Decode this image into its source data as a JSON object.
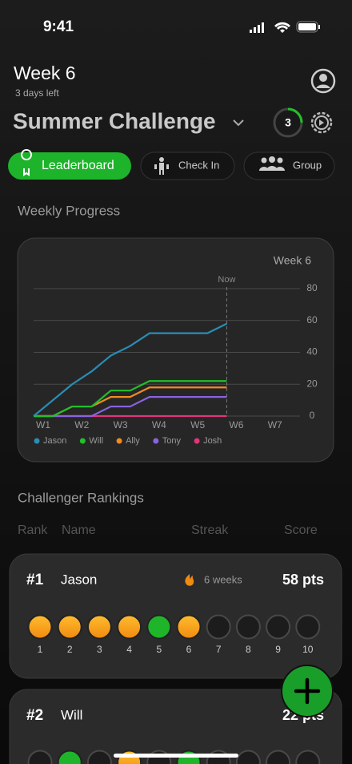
{
  "status": {
    "time": "9:41"
  },
  "header": {
    "week": "Week 6",
    "days_left": "3 days left",
    "title": "Summer Challenge",
    "badge": "3"
  },
  "tabs": [
    "Leaderboard",
    "Check In",
    "Group"
  ],
  "progress": {
    "heading": "Weekly Progress",
    "chart_data": {
      "type": "line",
      "corner_label": "Week 6",
      "annotation": {
        "text": "Now",
        "x": 6
      },
      "x": [
        1,
        1.5,
        2,
        2.5,
        3,
        3.5,
        4,
        4.5,
        5,
        5.5,
        6
      ],
      "xlim": [
        1,
        8
      ],
      "xticks": [
        {
          "value": 1,
          "label": "W1"
        },
        {
          "value": 2,
          "label": "W2"
        },
        {
          "value": 3,
          "label": "W3"
        },
        {
          "value": 4,
          "label": "W4"
        },
        {
          "value": 5,
          "label": "W5"
        },
        {
          "value": 6,
          "label": "W6"
        },
        {
          "value": 7,
          "label": "W7"
        }
      ],
      "ylim": [
        0,
        80
      ],
      "yticks": [
        0,
        20,
        40,
        60,
        80
      ],
      "grid": true,
      "series": [
        {
          "name": "Jason",
          "color": "#2a8db5",
          "values": [
            0,
            10,
            20,
            28,
            38,
            44,
            52,
            52,
            52,
            52,
            58
          ]
        },
        {
          "name": "Will",
          "color": "#22c02a",
          "values": [
            0,
            0,
            6,
            6,
            16,
            16,
            22,
            22,
            22,
            22,
            22
          ]
        },
        {
          "name": "Ally",
          "color": "#f08a24",
          "values": [
            0,
            0,
            6,
            6,
            12,
            12,
            18,
            18,
            18,
            18,
            18
          ]
        },
        {
          "name": "Tony",
          "color": "#8a63e0",
          "values": [
            0,
            0,
            0,
            0,
            6,
            6,
            12,
            12,
            12,
            12,
            12
          ]
        },
        {
          "name": "Josh",
          "color": "#e0357a",
          "values": [
            0,
            0,
            0,
            0,
            0,
            0,
            0,
            0,
            0,
            0,
            0
          ]
        }
      ]
    }
  },
  "rankings": {
    "heading": "Challenger Rankings",
    "columns": [
      "Rank",
      "Name",
      "Streak",
      "Score"
    ],
    "cards": [
      {
        "rank": "#1",
        "name": "Jason",
        "streak": "6 weeks",
        "score": "58 pts",
        "dots": [
          {
            "label": "1",
            "status": "orange"
          },
          {
            "label": "2",
            "status": "orange"
          },
          {
            "label": "3",
            "status": "orange"
          },
          {
            "label": "4",
            "status": "orange"
          },
          {
            "label": "5",
            "status": "green"
          },
          {
            "label": "6",
            "status": "orange"
          },
          {
            "label": "7",
            "status": "empty"
          },
          {
            "label": "8",
            "status": "empty"
          },
          {
            "label": "9",
            "status": "empty"
          },
          {
            "label": "10",
            "status": "empty"
          }
        ]
      },
      {
        "rank": "#2",
        "name": "Will",
        "score": "22 pts",
        "dots": [
          {
            "status": "empty"
          },
          {
            "status": "green"
          },
          {
            "status": "empty"
          },
          {
            "status": "orange"
          },
          {
            "status": "empty"
          },
          {
            "status": "green"
          },
          {
            "status": "empty"
          },
          {
            "status": "empty"
          },
          {
            "status": "empty"
          },
          {
            "status": "empty"
          }
        ]
      }
    ]
  }
}
